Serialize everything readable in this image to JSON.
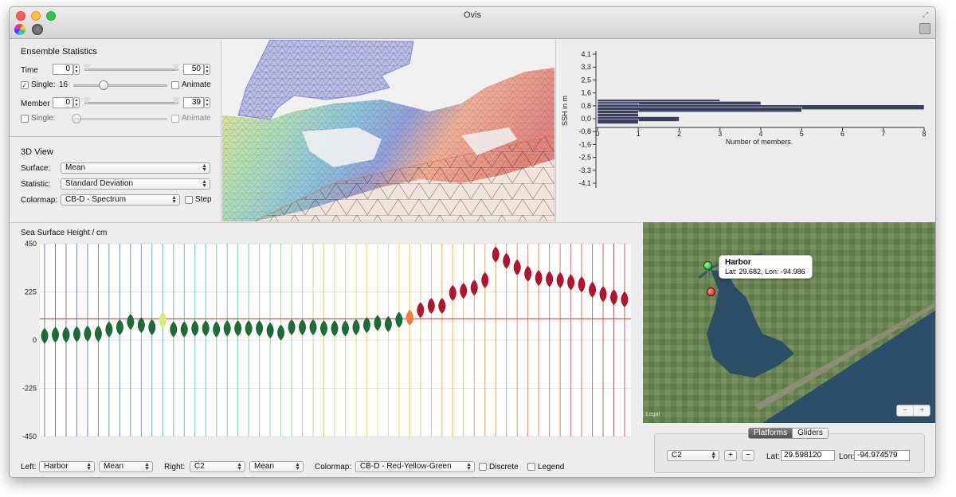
{
  "window": {
    "title": "Ovis"
  },
  "ensemble": {
    "heading": "Ensemble Statistics",
    "time_label": "Time",
    "time_min": "0",
    "time_max": "50",
    "single1_label": "Single:",
    "single1_value": "16",
    "animate_label": "Animate",
    "member_label": "Member",
    "member_min": "0",
    "member_max": "39",
    "single2_label": "Single:",
    "animate2_label": "Animate"
  },
  "view3d": {
    "heading": "3D View",
    "surface_label": "Surface:",
    "surface_value": "Mean",
    "statistic_label": "Statistic:",
    "statistic_value": "Standard Deviation",
    "colormap_label": "Colormap:",
    "colormap_value": "CB-D - Spectrum",
    "step_label": "Step"
  },
  "histogram": {
    "ylabel": "SSH in m",
    "xlabel": "Number of members.",
    "y_ticks": [
      "4,1",
      "3,3",
      "2,5",
      "1,6",
      "0,8",
      "0,0",
      "-0,8",
      "-1,6",
      "-2,5",
      "-3,3",
      "-4,1"
    ],
    "x_ticks": [
      "0",
      "1",
      "2",
      "3",
      "4",
      "5",
      "6",
      "7",
      "8"
    ]
  },
  "timeseries": {
    "title": "Sea Surface Height / cm",
    "y_ticks": [
      "450",
      "225",
      "0",
      "-225",
      "-450"
    ]
  },
  "bottom_controls": {
    "left_label": "Left:",
    "left_station": "Harbor",
    "left_stat": "Mean",
    "right_label": "Right:",
    "right_station": "C2",
    "right_stat": "Mean",
    "colormap_label": "Colormap:",
    "colormap_value": "CB-D - Red-Yellow-Green",
    "discrete_label": "Discrete",
    "legend_label": "Legend"
  },
  "map": {
    "popup_title": "Harbor",
    "popup_coords": "Lat: 29.682, Lon: -94.986",
    "zoom_out": "−",
    "zoom_in": "+",
    "legal": "Legal"
  },
  "platforms": {
    "tab_platforms": "Platforms",
    "tab_gliders": "Gliders",
    "platform_value": "C2",
    "add_label": "+",
    "remove_label": "−",
    "lat_label": "Lat:",
    "lat_value": "29.598120",
    "lon_label": "Lon:",
    "lon_value": "-94.974579"
  },
  "colors": {
    "green_violin": "#1e6b3a",
    "red_violin": "#b01530",
    "mean_line": "#c0392b",
    "hist_bar": "#3c3f5e"
  },
  "chart_data": [
    {
      "type": "bar",
      "orientation": "horizontal",
      "xlabel": "Number of members.",
      "ylabel": "SSH in m",
      "xlim": [
        0,
        8
      ],
      "ylim": [
        -4.1,
        4.1
      ],
      "categories": [
        "1.05",
        "0.92",
        "0.82",
        "0.70",
        "0.55",
        "0.35",
        "0.15",
        "-0.05",
        "-0.20"
      ],
      "values": [
        3,
        4,
        1,
        8,
        5,
        1,
        1,
        2,
        1
      ]
    },
    {
      "type": "violin",
      "title": "Sea Surface Height / cm",
      "ylim": [
        -450,
        450
      ],
      "mean_line": 100,
      "series": [
        {
          "values": [
            20,
            25,
            25,
            28,
            30,
            30,
            50,
            60,
            85,
            70,
            60,
            95,
            50,
            50,
            55,
            55,
            50,
            55,
            55,
            55,
            55,
            45,
            35,
            60,
            60,
            60,
            55,
            55,
            55,
            60,
            70,
            80,
            75,
            95,
            105,
            140,
            160,
            160,
            220,
            230,
            245,
            280,
            400,
            370,
            340,
            310,
            290,
            285,
            280,
            270,
            260,
            235,
            215,
            200,
            190
          ]
        },
        {
          "values_colors": [
            "g",
            "g",
            "g",
            "g",
            "g",
            "g",
            "g",
            "g",
            "g",
            "g",
            "g",
            "y",
            "g",
            "g",
            "g",
            "g",
            "g",
            "g",
            "g",
            "g",
            "g",
            "g",
            "g",
            "g",
            "g",
            "g",
            "g",
            "g",
            "g",
            "g",
            "g",
            "g",
            "g",
            "g",
            "o",
            "r",
            "r",
            "r",
            "r",
            "r",
            "r",
            "r",
            "r",
            "r",
            "r",
            "r",
            "r",
            "r",
            "r",
            "r",
            "r",
            "r",
            "r",
            "r",
            "r"
          ]
        }
      ]
    }
  ]
}
